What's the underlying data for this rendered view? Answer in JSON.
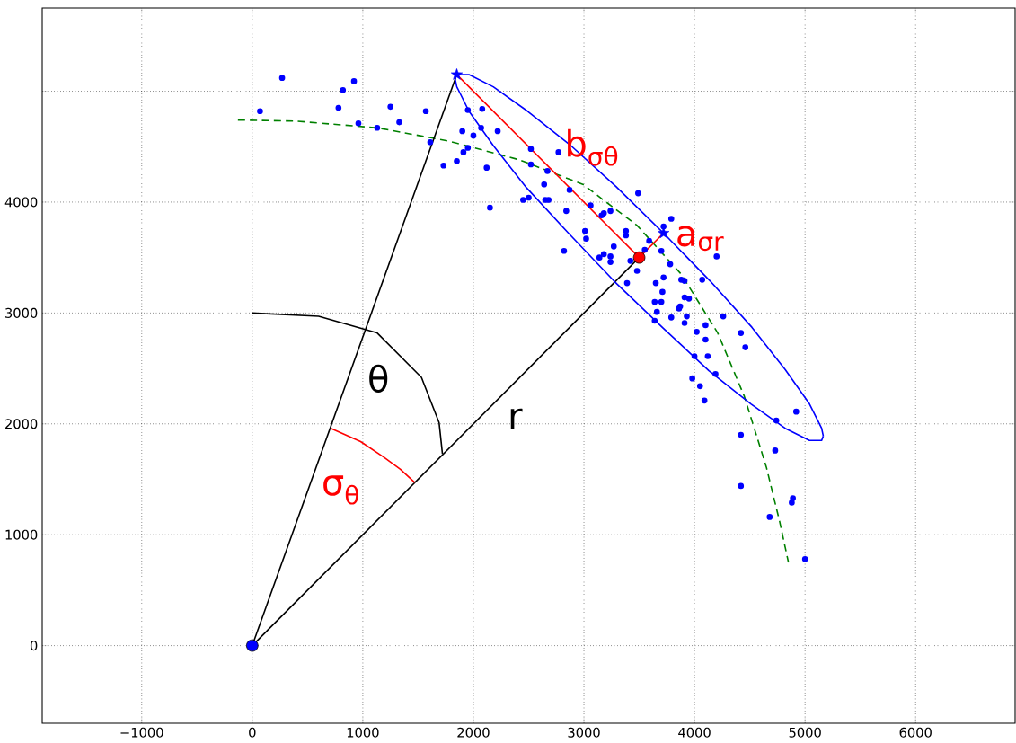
{
  "chart_data": {
    "type": "scatter",
    "xlim": [
      -1900,
      6900
    ],
    "ylim": [
      -700,
      5750
    ],
    "xticks": [
      {
        "value": -1000,
        "label": "−1000"
      },
      0,
      1000,
      2000,
      3000,
      4000,
      5000,
      6000
    ],
    "yticks": [
      0,
      1000,
      2000,
      3000,
      4000,
      {
        "value": 5000,
        "label": null
      }
    ],
    "grid": true,
    "series": [
      {
        "color": "#0000ff",
        "marker": "circle",
        "x": [
          270,
          70,
          820,
          920,
          780,
          960,
          1130,
          1250,
          1330,
          1570,
          1610,
          1730,
          1850,
          1900,
          1950,
          1950,
          1910,
          2000,
          2080,
          2070,
          2220,
          2120,
          2150,
          2520,
          2770,
          2520,
          2670,
          2640,
          2870,
          2450,
          2500,
          2650,
          2680,
          3490,
          3060,
          2840,
          3180,
          3160,
          3240,
          3010,
          3020,
          3380,
          3380,
          2820,
          3270,
          3140,
          3180,
          3240,
          3240,
          3590,
          3720,
          3790,
          3700,
          3480,
          3780,
          3720,
          3650,
          3390,
          3880,
          3550,
          3420,
          4200,
          3910,
          4070,
          3710,
          3910,
          3950,
          3640,
          3700,
          3860,
          3870,
          3660,
          3930,
          3790,
          4260,
          3640,
          3910,
          4100,
          4020,
          4100,
          4420,
          4460,
          4000,
          4120,
          4190,
          3980,
          4050,
          4090,
          4740,
          4920,
          4420,
          4730,
          4420,
          4890,
          4880,
          4680,
          5000
        ],
        "values": [
          5120,
          4820,
          5010,
          5090,
          4850,
          4710,
          4670,
          4860,
          4720,
          4820,
          4540,
          4330,
          4370,
          4640,
          4830,
          4490,
          4450,
          4600,
          4840,
          4670,
          4640,
          4310,
          3950,
          4480,
          4450,
          4340,
          4280,
          4160,
          4110,
          4020,
          4040,
          4020,
          4020,
          4080,
          3970,
          3920,
          3900,
          3880,
          3920,
          3740,
          3670,
          3740,
          3700,
          3560,
          3600,
          3500,
          3530,
          3510,
          3460,
          3650,
          3780,
          3850,
          3560,
          3380,
          3440,
          3320,
          3270,
          3270,
          3300,
          3570,
          3470,
          3510,
          3290,
          3300,
          3190,
          3140,
          3130,
          3100,
          3100,
          3040,
          3060,
          3010,
          2970,
          2960,
          2970,
          2930,
          2910,
          2890,
          2830,
          2760,
          2820,
          2690,
          2610,
          2610,
          2450,
          2410,
          2340,
          2210,
          2030,
          2110,
          1900,
          1760,
          1440,
          1330,
          1290,
          1160,
          780
        ]
      },
      {
        "type": "line",
        "color": "#008000",
        "line_style": "dashed",
        "marker": "none",
        "x": [
          -130,
          400,
          1130,
          1780,
          2420,
          2990,
          3480,
          3880,
          4210,
          4450,
          4650,
          4770,
          4850
        ],
        "values": [
          4740,
          4730,
          4670,
          4550,
          4380,
          4160,
          3790,
          3350,
          2820,
          2250,
          1610,
          1120,
          750
        ]
      },
      {
        "type": "line",
        "color": "#000000",
        "line_style": "solid",
        "marker": "none",
        "x": [
          0,
          1850
        ],
        "values": [
          0,
          5150
        ]
      },
      {
        "type": "line",
        "color": "#000000",
        "line_style": "solid",
        "marker": "none",
        "x": [
          0,
          3500
        ],
        "values": [
          0,
          3500
        ]
      },
      {
        "type": "line",
        "color": "#000000",
        "line_style": "solid",
        "marker": "none",
        "x": [
          0,
          600,
          1130,
          1530,
          1690,
          1720
        ],
        "values": [
          3000,
          2970,
          2820,
          2420,
          2010,
          1730
        ]
      },
      {
        "type": "line",
        "color": "#ff0000",
        "line_style": "solid",
        "marker": "none",
        "x": [
          1850,
          3500
        ],
        "values": [
          5150,
          3500
        ]
      },
      {
        "type": "line",
        "color": "#ff0000",
        "line_style": "solid",
        "marker": "none",
        "x": [
          3500,
          3720
        ],
        "values": [
          3500,
          3720
        ]
      },
      {
        "type": "line",
        "color": "#ff0000",
        "line_style": "solid",
        "marker": "none",
        "x": [
          710,
          980,
          1190,
          1340,
          1470
        ],
        "values": [
          1960,
          1840,
          1700,
          1590,
          1470
        ]
      },
      {
        "type": "line",
        "color": "#0000ff",
        "line_style": "solid",
        "marker": "none",
        "x": [
          1835,
          1850,
          1960,
          2180,
          2490,
          2870,
          3290,
          3720,
          4140,
          4520,
          4820,
          5040,
          5150,
          5165
        ],
        "values": [
          5110,
          5150,
          5150,
          5040,
          4820,
          4520,
          4140,
          3720,
          3290,
          2870,
          2490,
          2180,
          1960,
          1890
        ]
      },
      {
        "type": "line",
        "color": "#0000ff",
        "line_style": "solid",
        "marker": "none",
        "x": [
          1835,
          1850,
          1960,
          2180,
          2480,
          2860,
          3280,
          3720,
          4130,
          4510,
          4820,
          5040,
          5150,
          5165
        ],
        "values": [
          5110,
          5040,
          4820,
          4510,
          4130,
          3720,
          3280,
          2860,
          2480,
          2180,
          1960,
          1850,
          1850,
          1890
        ]
      },
      {
        "color": "#0000ff",
        "marker": "star",
        "x": [
          1850,
          3720
        ],
        "values": [
          5150,
          3720
        ]
      },
      {
        "color": "#ff0000",
        "marker": "circle",
        "x": [
          3500
        ],
        "values": [
          3500
        ]
      },
      {
        "color": "#0000ff",
        "marker": "circle",
        "x": [
          0
        ],
        "values": [
          0
        ]
      }
    ],
    "annotations": [
      "θ",
      "r",
      "σ$_{θ}$",
      "b$_{σθ}$",
      "a$_{σr}$"
    ]
  }
}
